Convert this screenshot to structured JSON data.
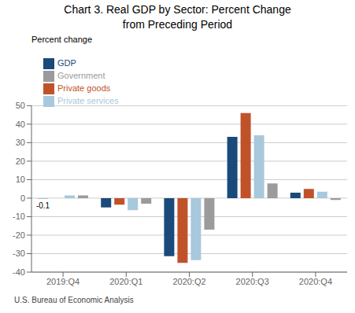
{
  "chart_data": {
    "type": "bar",
    "title": "Chart 3. Real GDP by Sector: Percent Change\nfrom Preceding Period",
    "ylabel": "Percent change",
    "categories": [
      "2019:Q4",
      "2020:Q1",
      "2020:Q2",
      "2020:Q3",
      "2020:Q4"
    ],
    "series": [
      {
        "name": "GDP",
        "color": "#1A4A7A",
        "values": [
          -0.1,
          -5.0,
          -31.4,
          33.1,
          3.0
        ]
      },
      {
        "name": "Private goods",
        "color": "#C0522A",
        "values": [
          0.0,
          -3.5,
          -35.0,
          46.0,
          5.0
        ]
      },
      {
        "name": "Private services",
        "color": "#A8C8DC",
        "values": [
          1.5,
          -6.5,
          -33.5,
          34.0,
          3.5
        ]
      },
      {
        "name": "Government",
        "color": "#9B9B9B",
        "values": [
          1.5,
          -3.0,
          -17.0,
          8.0,
          -1.0
        ]
      }
    ],
    "ylim": [
      -40,
      50
    ],
    "yticks": [
      -40,
      -30,
      -20,
      -10,
      0,
      10,
      20,
      30,
      40,
      50
    ],
    "grid": true,
    "legend": "upper left",
    "annotations": [
      {
        "text": "-0.1",
        "category": "2019:Q4",
        "series": "GDP"
      }
    ],
    "footnote": "U.S. Bureau of Economic Analysis"
  }
}
